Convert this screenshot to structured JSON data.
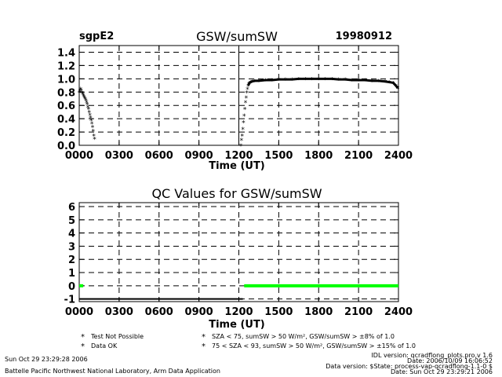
{
  "header": {
    "site": "sgpE2",
    "title": "GSW/sumSW",
    "date": "19980912"
  },
  "chart_data": [
    {
      "type": "scatter",
      "title": "GSW/sumSW",
      "xlabel": "Time (UT)",
      "ylabel": "",
      "xlim": [
        0,
        2400
      ],
      "ylim": [
        0,
        1.5
      ],
      "x_ticks": [
        "0000",
        "0300",
        "0600",
        "0900",
        "1200",
        "1500",
        "1800",
        "2100",
        "2400"
      ],
      "y_ticks": [
        "0.0",
        "0.2",
        "0.4",
        "0.6",
        "0.8",
        "1.0",
        "1.2",
        "1.4"
      ],
      "grid": true,
      "vertical_marker_x": 1200,
      "series": [
        {
          "x": [
            0,
            5,
            10,
            15,
            20,
            25,
            30,
            35,
            40,
            45,
            50,
            55,
            60,
            65,
            70,
            75,
            80,
            85,
            90,
            95,
            100,
            105,
            110,
            115,
            1215,
            1220,
            1225,
            1230,
            1235,
            1240,
            1245,
            1250,
            1255,
            1260,
            1265,
            1270,
            1275,
            1280,
            1290,
            1300,
            1320,
            1350,
            1400,
            1450,
            1500,
            1550,
            1600,
            1650,
            1700,
            1750,
            1800,
            1850,
            1900,
            1950,
            2000,
            2050,
            2100,
            2150,
            2200,
            2250,
            2300,
            2330,
            2360,
            2380,
            2395
          ],
          "y": [
            0.8,
            0.82,
            0.85,
            0.83,
            0.8,
            0.78,
            0.76,
            0.74,
            0.72,
            0.7,
            0.68,
            0.65,
            0.62,
            0.58,
            0.55,
            0.5,
            0.46,
            0.42,
            0.38,
            0.33,
            0.28,
            0.22,
            0.15,
            0.1,
            0.0,
            0.08,
            0.15,
            0.25,
            0.35,
            0.45,
            0.55,
            0.65,
            0.72,
            0.8,
            0.85,
            0.9,
            0.92,
            0.94,
            0.95,
            0.96,
            0.97,
            0.97,
            0.98,
            0.98,
            0.99,
            0.99,
            0.99,
            1.0,
            1.0,
            1.0,
            1.0,
            1.0,
            1.0,
            0.99,
            0.99,
            0.98,
            0.98,
            0.98,
            0.97,
            0.97,
            0.96,
            0.95,
            0.94,
            0.9,
            0.86
          ]
        }
      ]
    },
    {
      "type": "line",
      "title": "QC Values for GSW/sumSW",
      "xlabel": "Time (UT)",
      "ylabel": "",
      "xlim": [
        0,
        2400
      ],
      "ylim": [
        -1.2,
        6.3
      ],
      "x_ticks": [
        "0000",
        "0300",
        "0600",
        "0900",
        "1200",
        "1500",
        "1800",
        "2100",
        "2400"
      ],
      "y_ticks": [
        "-1",
        "0",
        "1",
        "2",
        "3",
        "4",
        "5",
        "6"
      ],
      "grid": true,
      "series": [
        {
          "color": "#000000",
          "x": [
            0,
            1230
          ],
          "y": [
            -1,
            -1
          ]
        },
        {
          "color": "#00ff00",
          "x": [
            1240,
            2400
          ],
          "y": [
            0,
            0
          ]
        },
        {
          "color": "#00ff00",
          "x": [
            0,
            30
          ],
          "y": [
            0,
            0
          ]
        }
      ]
    }
  ],
  "legend": {
    "items": [
      {
        "symbol": "*",
        "color": "#000000",
        "text": "Test Not Possible"
      },
      {
        "symbol": "*",
        "color": "#00ff00",
        "text": "Data OK"
      },
      {
        "symbol": "*",
        "color": "#ffaa00",
        "text": "SZA < 75, sumSW > 50 W/m², GSW/sumSW > ±8% of 1.0"
      },
      {
        "symbol": "*",
        "color": "#ff0000",
        "text": "75 < SZA < 93, sumSW > 50 W/m², GSW/sumSW > ±15% of 1.0"
      }
    ]
  },
  "footer": {
    "left_date": "Sun Oct 29 23:29:28 2006",
    "left_org": "Battelle Pacific Northwest National Laboratory, Arm Data Application",
    "right_idl": "IDL version: qcradflong_plots.pro,v 1.6",
    "right_date": "Date: 2006/10/09 16:06:52",
    "right_data_version": "Data version: $State: process-vap-qcradflong-1.1-0 $",
    "right_date2": "Date: Sun Oct 29 23:29:21 2006"
  }
}
